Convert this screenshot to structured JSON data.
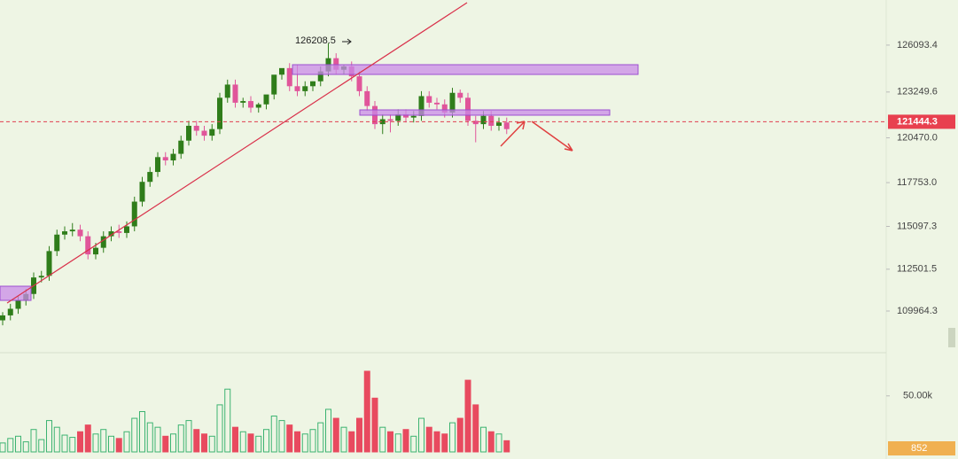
{
  "chart_data": {
    "type": "candlestick",
    "candles": {
      "open": [
        109400,
        109700,
        110100,
        110600,
        111000,
        112000,
        112100,
        113600,
        114600,
        114800,
        114900,
        114500,
        113400,
        113800,
        114500,
        114800,
        114700,
        115100,
        116600,
        117800,
        118400,
        119300,
        119100,
        119500,
        120300,
        121200,
        120900,
        120600,
        121000,
        122900,
        123700,
        122600,
        122700,
        122300,
        122500,
        123100,
        124300,
        124700,
        123600,
        123300,
        123600,
        123900,
        124500,
        125300,
        124600,
        124800,
        124200,
        123300,
        122400,
        121300,
        121600,
        121500,
        121900,
        121700,
        121800,
        123000,
        122600,
        122500,
        122000,
        123200,
        122900,
        121500,
        121300,
        121800,
        121200,
        121400
      ],
      "high": [
        109900,
        110400,
        110900,
        111300,
        112300,
        112400,
        113900,
        114900,
        115100,
        115300,
        115200,
        114800,
        114100,
        114800,
        115100,
        115200,
        115400,
        116900,
        118100,
        118700,
        119600,
        119600,
        119800,
        120600,
        121500,
        121500,
        121200,
        121300,
        123200,
        124000,
        124000,
        122900,
        123000,
        122600,
        122800,
        123400,
        124600,
        125000,
        124900,
        123900,
        123900,
        124800,
        126208.5,
        125600,
        124900,
        125100,
        124500,
        123600,
        122700,
        121900,
        121900,
        122200,
        122200,
        122100,
        123300,
        123300,
        122900,
        122800,
        123500,
        123400,
        123200,
        121800,
        122100,
        122100,
        121700,
        121700
      ],
      "low": [
        109100,
        109400,
        109800,
        110300,
        110700,
        111700,
        111800,
        113300,
        114300,
        114500,
        114200,
        113100,
        113100,
        113500,
        114200,
        114400,
        114400,
        114800,
        116300,
        117500,
        118100,
        118800,
        118800,
        119200,
        120000,
        120600,
        120300,
        120300,
        120700,
        122600,
        122300,
        122300,
        122000,
        122000,
        122200,
        122800,
        124000,
        123300,
        123000,
        123000,
        123300,
        123600,
        124200,
        124300,
        124300,
        123900,
        123000,
        122100,
        121000,
        120700,
        120800,
        121200,
        121400,
        121400,
        121500,
        122300,
        122200,
        121700,
        121700,
        122600,
        121200,
        120200,
        121000,
        120900,
        120900,
        120700
      ],
      "close": [
        109700,
        110100,
        110600,
        111000,
        112000,
        112100,
        113600,
        114600,
        114800,
        114900,
        114500,
        113400,
        113800,
        114500,
        114800,
        114700,
        115100,
        116600,
        117800,
        118400,
        119300,
        119100,
        119500,
        120300,
        121200,
        120900,
        120600,
        121000,
        122900,
        123700,
        122600,
        122700,
        122300,
        122500,
        123100,
        124300,
        124700,
        123600,
        123300,
        123600,
        123900,
        124500,
        125300,
        124600,
        124800,
        124200,
        123300,
        122400,
        121300,
        121600,
        121500,
        121900,
        121700,
        121800,
        123000,
        122600,
        122500,
        122000,
        123200,
        122900,
        121500,
        121300,
        121800,
        121200,
        121400,
        121000
      ],
      "volume": [
        8000,
        12000,
        14000,
        9000,
        20000,
        11000,
        28000,
        22000,
        15000,
        13000,
        18000,
        24000,
        16000,
        20000,
        14000,
        12000,
        18000,
        30000,
        36000,
        26000,
        22000,
        14000,
        16000,
        24000,
        28000,
        20000,
        16000,
        14000,
        42000,
        56000,
        22000,
        18000,
        16000,
        14000,
        20000,
        32000,
        28000,
        24000,
        18000,
        16000,
        20000,
        26000,
        38000,
        30000,
        22000,
        18000,
        30000,
        72000,
        48000,
        22000,
        18000,
        16000,
        20000,
        14000,
        30000,
        22000,
        18000,
        16000,
        26000,
        30000,
        64000,
        42000,
        22000,
        18000,
        16000,
        10000
      ]
    },
    "ylim": [
      107600,
      128830
    ],
    "yticks": [
      126093.4,
      123249.6,
      {
        "value": 120470,
        "label": "120470.0"
      },
      {
        "value": 117753,
        "label": "117753.0"
      },
      115097.3,
      112501.5,
      109964.3
    ],
    "current_price": 121444.3,
    "peak_label": "126208.5",
    "volume_ylim": [
      0,
      87000
    ],
    "volume_ticks": [
      {
        "value": 50000,
        "label": "50.00k"
      }
    ],
    "current_volume_label": "852",
    "up_color": "#2f7d1a",
    "down_color": "#e0559a",
    "vol_up_color": "#3cb371",
    "vol_down_color": "#e84a5f"
  }
}
